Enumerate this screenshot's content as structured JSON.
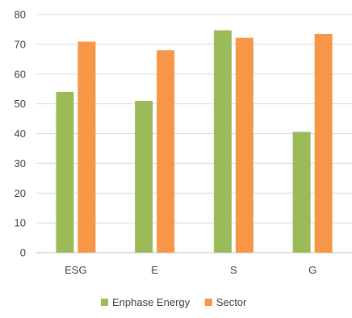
{
  "chart_data": {
    "type": "bar",
    "title": "",
    "xlabel": "",
    "ylabel": "",
    "categories": [
      "ESG",
      "E",
      "S",
      "G"
    ],
    "series": [
      {
        "name": "Enphase Energy",
        "color": "#9bbb59",
        "values": [
          54,
          51,
          74.7,
          40.6
        ]
      },
      {
        "name": "Sector",
        "color": "#f79646",
        "values": [
          70.9,
          68,
          72.2,
          73.5
        ]
      }
    ],
    "ylim": [
      0,
      80
    ],
    "yticks": [
      0,
      10,
      20,
      30,
      40,
      50,
      60,
      70,
      80
    ],
    "grid": true,
    "legend_position": "bottom-center"
  }
}
